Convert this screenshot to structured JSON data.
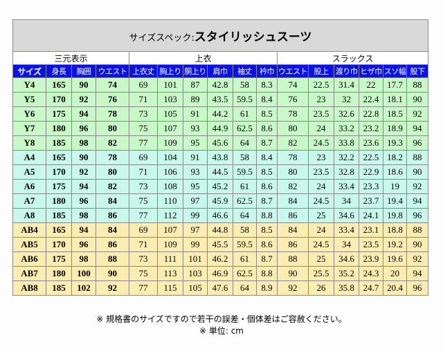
{
  "title": {
    "prefix": "サイズスペック:",
    "main": "スタイリッシュスーツ"
  },
  "groups": [
    "三元表示",
    "上衣",
    "スラックス"
  ],
  "columns": [
    "サイズ",
    "身長",
    "胸囲",
    "ウエスト",
    "上衣丈",
    "胸上り",
    "胴上り",
    "肩巾",
    "袖丈",
    "衿巾",
    "ウエスト",
    "股上",
    "渡り巾",
    "ヒザ巾",
    "スソ幅",
    "股下"
  ],
  "rows": [
    [
      "Y4",
      165,
      90,
      74,
      69,
      101,
      87,
      42.8,
      58,
      8.3,
      74,
      22.5,
      31.4,
      22,
      17.7,
      88
    ],
    [
      "Y5",
      170,
      92,
      76,
      71,
      103,
      89,
      43.5,
      59.5,
      8.4,
      76,
      23,
      32,
      22.4,
      18.1,
      90
    ],
    [
      "Y6",
      175,
      94,
      78,
      73,
      105,
      91,
      44.2,
      61,
      8.5,
      78,
      23.5,
      32.6,
      22.8,
      18.5,
      92
    ],
    [
      "Y7",
      180,
      96,
      80,
      75,
      107,
      93,
      44.9,
      62.5,
      8.6,
      80,
      24,
      33.2,
      23.2,
      18.9,
      94
    ],
    [
      "Y8",
      185,
      98,
      82,
      77,
      109,
      95,
      45.6,
      64,
      8.7,
      82,
      24.5,
      33.8,
      23.6,
      19.3,
      96
    ],
    [
      "A4",
      165,
      90,
      78,
      69,
      104,
      91,
      43.8,
      58,
      8.4,
      78,
      23,
      32.2,
      22.5,
      18.2,
      88
    ],
    [
      "A5",
      170,
      92,
      80,
      71,
      106,
      93,
      44.5,
      59.5,
      8.5,
      80,
      23.5,
      32.8,
      22.9,
      18.6,
      90
    ],
    [
      "A6",
      175,
      94,
      82,
      73,
      108,
      95,
      45.2,
      61,
      8.6,
      82,
      24,
      33.4,
      23.3,
      19,
      92
    ],
    [
      "A7",
      180,
      96,
      84,
      75,
      110,
      97,
      45.9,
      62.5,
      8.7,
      84,
      24.5,
      34,
      23.7,
      19.4,
      94
    ],
    [
      "A8",
      185,
      98,
      86,
      77,
      112,
      99,
      46.6,
      64,
      8.8,
      86,
      25,
      34.6,
      24.1,
      19.8,
      96
    ],
    [
      "AB4",
      165,
      94,
      84,
      69,
      107,
      97,
      44.8,
      58,
      8.5,
      84,
      24,
      33.4,
      23.1,
      18.8,
      88
    ],
    [
      "AB5",
      170,
      96,
      86,
      71,
      109,
      99,
      45.5,
      59.5,
      8.6,
      86,
      24.5,
      34,
      23.5,
      19.2,
      90
    ],
    [
      "AB6",
      175,
      98,
      88,
      73,
      111,
      101,
      46.2,
      61,
      8.7,
      88,
      25,
      34.6,
      23.9,
      19.6,
      92
    ],
    [
      "AB7",
      180,
      100,
      90,
      75,
      113,
      103,
      46.9,
      62.5,
      8.8,
      90,
      25.5,
      35.2,
      24.3,
      20,
      94
    ],
    [
      "AB8",
      185,
      102,
      92,
      77,
      115,
      105,
      47.6,
      64,
      8.9,
      92,
      26,
      35.8,
      24.7,
      20.4,
      96
    ]
  ],
  "notes": [
    "※ 規格書のサイズですので若干の誤差・個体差はご容赦ください。",
    "※ 単位: cm"
  ]
}
